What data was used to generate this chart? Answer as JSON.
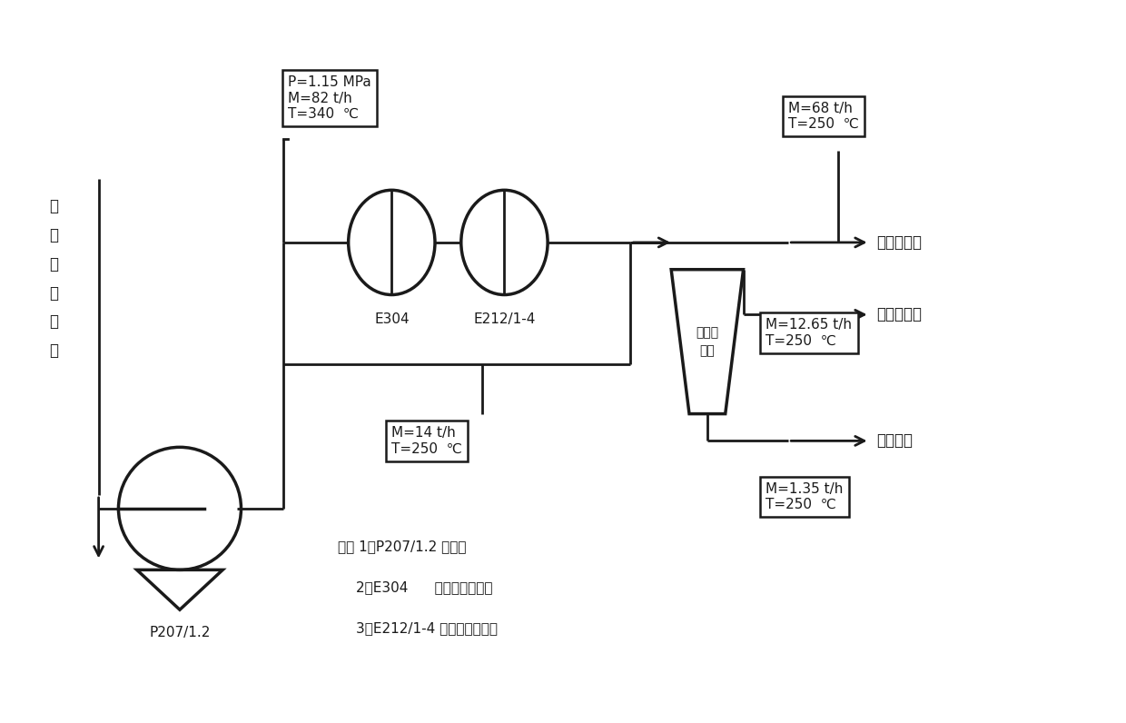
{
  "bg_color": "#ffffff",
  "line_color": "#1a1a1a",
  "box1_text": "P=1.15 MPa\nM=82 t/h\nT=340  ℃",
  "box2_text": "M=68 t/h\nT=250  ℃",
  "box3_text": "M=14 t/h\nT=250  ℃",
  "box4_text": "M=12.65 t/h\nT=250  ℃",
  "box5_text": "M=1.35 t/h\nT=250  ℃",
  "label_E304": "E304",
  "label_E212": "E212/1-4",
  "label_P207": "P207/1.2",
  "label_separator": "碰液分\n离器",
  "label_left_line1": "分馏",
  "label_left_line2": "塔",
  "label_left_line3": "来",
  "label_left_line4": "油",
  "label_left_line5": "浆",
  "arrow1_text": "油浆上返塔",
  "arrow2_text": "油浆下返塔",
  "arrow3_text": "油浆外甩",
  "note_line1": "注： 1、P207/1.2 油浆泵",
  "note_line2": "2、E304      稳定塔底謪沸器",
  "note_line3": "3、E212/1-4 油浆浆油换热器"
}
